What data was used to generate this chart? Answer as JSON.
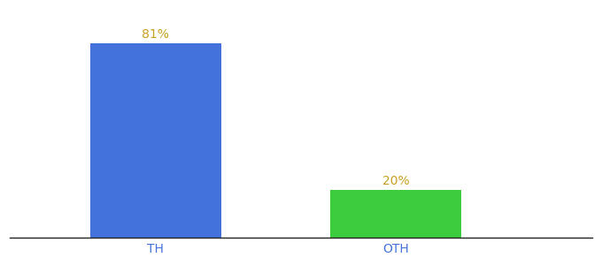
{
  "categories": [
    "TH",
    "OTH"
  ],
  "values": [
    81,
    20
  ],
  "bar_colors": [
    "#4472dd",
    "#3dcc3d"
  ],
  "value_labels": [
    "81%",
    "20%"
  ],
  "label_color": "#c8a020",
  "background_color": "#ffffff",
  "ylim": [
    0,
    95
  ],
  "bar_width": 0.18,
  "x_positions": [
    0.3,
    0.63
  ],
  "xlim": [
    0.1,
    0.9
  ],
  "xlabel_fontsize": 10,
  "label_fontsize": 10,
  "spine_color": "#222222",
  "tick_color": "#4472dd"
}
